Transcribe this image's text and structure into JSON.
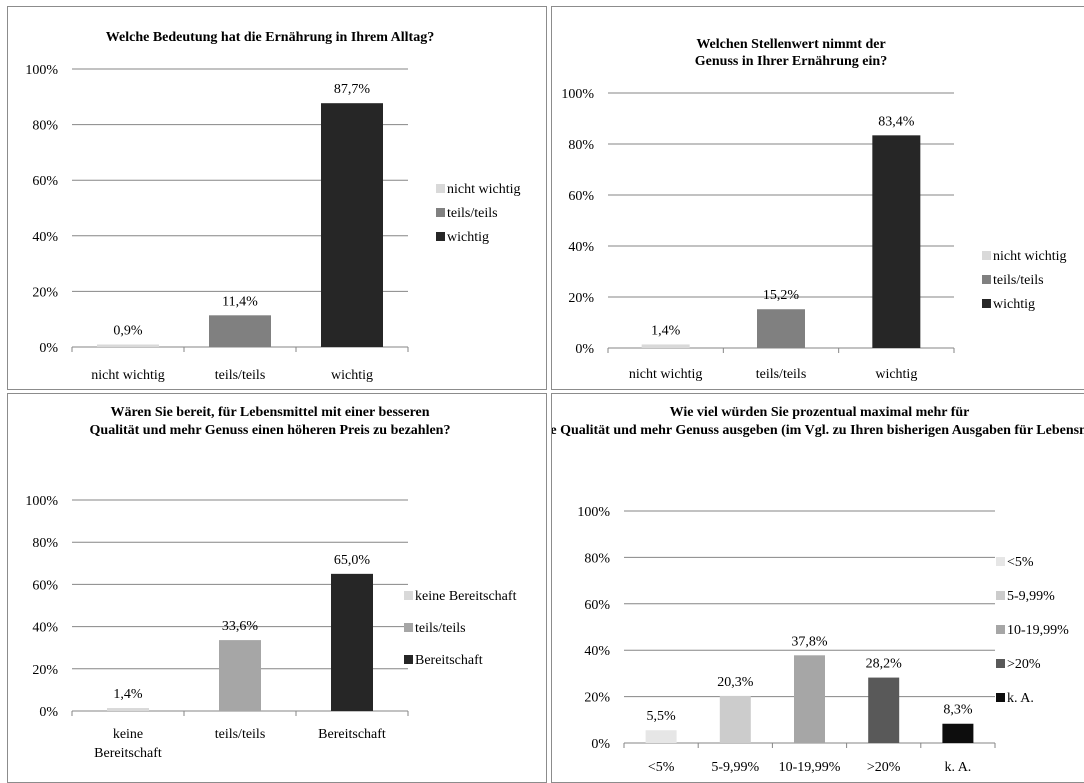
{
  "chart_data": [
    {
      "type": "bar",
      "title": "Welche Bedeutung hat die Ernährung in Ihrem Alltag?",
      "categories": [
        "nicht wichtig",
        "teils/teils",
        "wichtig"
      ],
      "values": [
        0.9,
        11.4,
        87.7
      ],
      "value_labels": [
        "0,9%",
        "11,4%",
        "87,7%"
      ],
      "ylim": [
        0,
        100
      ],
      "ytick_values": [
        0,
        20,
        40,
        60,
        80,
        100
      ],
      "ytick_labels": [
        "0%",
        "20%",
        "40%",
        "60%",
        "80%",
        "100%"
      ],
      "legend": [
        "nicht wichtig",
        "teils/teils",
        "wichtig"
      ],
      "legend_position": "right",
      "colors": [
        "#d9d9d9",
        "#808080",
        "#262626"
      ],
      "grid": true
    },
    {
      "type": "bar",
      "title": "Welchen Stellenwert nimmt der Genuss in Ihrer Ernährung ein?",
      "categories": [
        "nicht wichtig",
        "teils/teils",
        "wichtig"
      ],
      "values": [
        1.4,
        15.2,
        83.4
      ],
      "value_labels": [
        "1,4%",
        "15,2%",
        "83,4%"
      ],
      "ylim": [
        0,
        100
      ],
      "ytick_values": [
        0,
        20,
        40,
        60,
        80,
        100
      ],
      "ytick_labels": [
        "0%",
        "20%",
        "40%",
        "60%",
        "80%",
        "100%"
      ],
      "legend": [
        "nicht wichtig",
        "teils/teils",
        "wichtig"
      ],
      "legend_position": "right",
      "colors": [
        "#d9d9d9",
        "#808080",
        "#262626"
      ],
      "grid": true
    },
    {
      "type": "bar",
      "title": "Wären Sie bereit, für Lebensmittel mit einer besseren Qualität und mehr Genuss einen höheren Preis zu bezahlen?",
      "categories": [
        "keine Bereitschaft",
        "teils/teils",
        "Bereitschaft"
      ],
      "values": [
        1.4,
        33.6,
        65.0
      ],
      "value_labels": [
        "1,4%",
        "33,6%",
        "65,0%"
      ],
      "ylim": [
        0,
        100
      ],
      "ytick_values": [
        0,
        20,
        40,
        60,
        80,
        100
      ],
      "ytick_labels": [
        "0%",
        "20%",
        "40%",
        "60%",
        "80%",
        "100%"
      ],
      "legend": [
        "keine Bereitschaft",
        "teils/teils",
        "Bereitschaft"
      ],
      "legend_position": "right",
      "colors": [
        "#d9d9d9",
        "#a6a6a6",
        "#262626"
      ],
      "grid": true
    },
    {
      "type": "bar",
      "title": "Wie viel würden Sie prozentual maximal mehr für bessere Qualität und mehr Genuss ausgeben (im Vgl. zu Ihren bisherigen Ausgaben für Lebensmittel)?",
      "categories": [
        "<5%",
        "5-9,99%",
        "10-19,99%",
        ">20%",
        "k. A."
      ],
      "values": [
        5.5,
        20.3,
        37.8,
        28.2,
        8.3
      ],
      "value_labels": [
        "5,5%",
        "20,3%",
        "37,8%",
        "28,2%",
        "8,3%"
      ],
      "ylim": [
        0,
        100
      ],
      "ytick_values": [
        0,
        20,
        40,
        60,
        80,
        100
      ],
      "ytick_labels": [
        "0%",
        "20%",
        "40%",
        "60%",
        "80%",
        "100%"
      ],
      "legend": [
        "<5%",
        "5-9,99%",
        "10-19,99%",
        ">20%",
        "k. A."
      ],
      "legend_position": "right",
      "colors": [
        "#e6e6e6",
        "#cccccc",
        "#a6a6a6",
        "#595959",
        "#0d0d0d"
      ],
      "grid": true
    }
  ]
}
